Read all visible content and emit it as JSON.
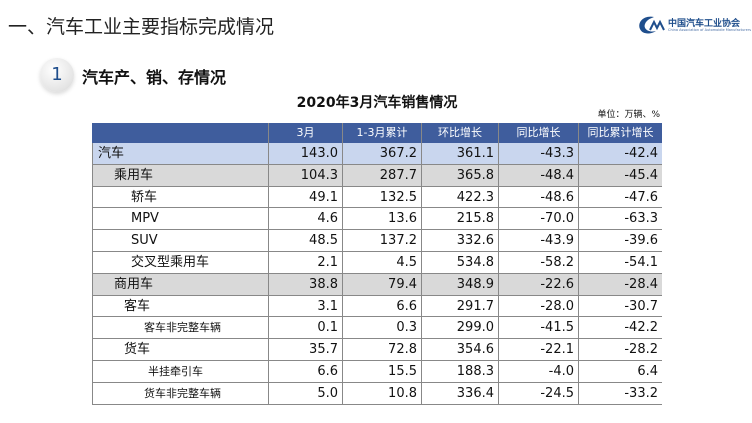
{
  "header": {
    "title": "一、汽车工业主要指标完成情况",
    "logo": "中国汽车工业协会",
    "logo_sub": "China Association of Automobile Manufacturers"
  },
  "section": {
    "number": "1",
    "title": "汽车产、销、存情况"
  },
  "table": {
    "title": "2020年3月汽车销售情况",
    "unit": "单位：万辆、%",
    "columns": [
      "",
      "3月",
      "1-3月累计",
      "环比增长",
      "同比增长",
      "同比累计增长"
    ],
    "rows": [
      [
        "汽车",
        "143.0",
        "367.2",
        "361.1",
        "-43.3",
        "-42.4"
      ],
      [
        "乘用车",
        "104.3",
        "287.7",
        "365.8",
        "-48.4",
        "-45.4"
      ],
      [
        "轿车",
        "49.1",
        "132.5",
        "422.3",
        "-48.6",
        "-47.6"
      ],
      [
        "MPV",
        "4.6",
        "13.6",
        "215.8",
        "-70.0",
        "-63.3"
      ],
      [
        "SUV",
        "48.5",
        "137.2",
        "332.6",
        "-43.9",
        "-39.6"
      ],
      [
        "交叉型乘用车",
        "2.1",
        "4.5",
        "534.8",
        "-58.2",
        "-54.1"
      ],
      [
        "商用车",
        "38.8",
        "79.4",
        "348.9",
        "-22.6",
        "-28.4"
      ],
      [
        "客车",
        "3.1",
        "6.6",
        "291.7",
        "-28.0",
        "-30.7"
      ],
      [
        "客车非完整车辆",
        "0.1",
        "0.3",
        "299.0",
        "-41.5",
        "-42.2"
      ],
      [
        "货车",
        "35.7",
        "72.8",
        "354.6",
        "-22.1",
        "-28.2"
      ],
      [
        "半挂牵引车",
        "6.6",
        "15.5",
        "188.3",
        "-4.0",
        "6.4"
      ],
      [
        "货车非完整车辆",
        "5.0",
        "10.8",
        "336.4",
        "-24.5",
        "-33.2"
      ]
    ]
  }
}
